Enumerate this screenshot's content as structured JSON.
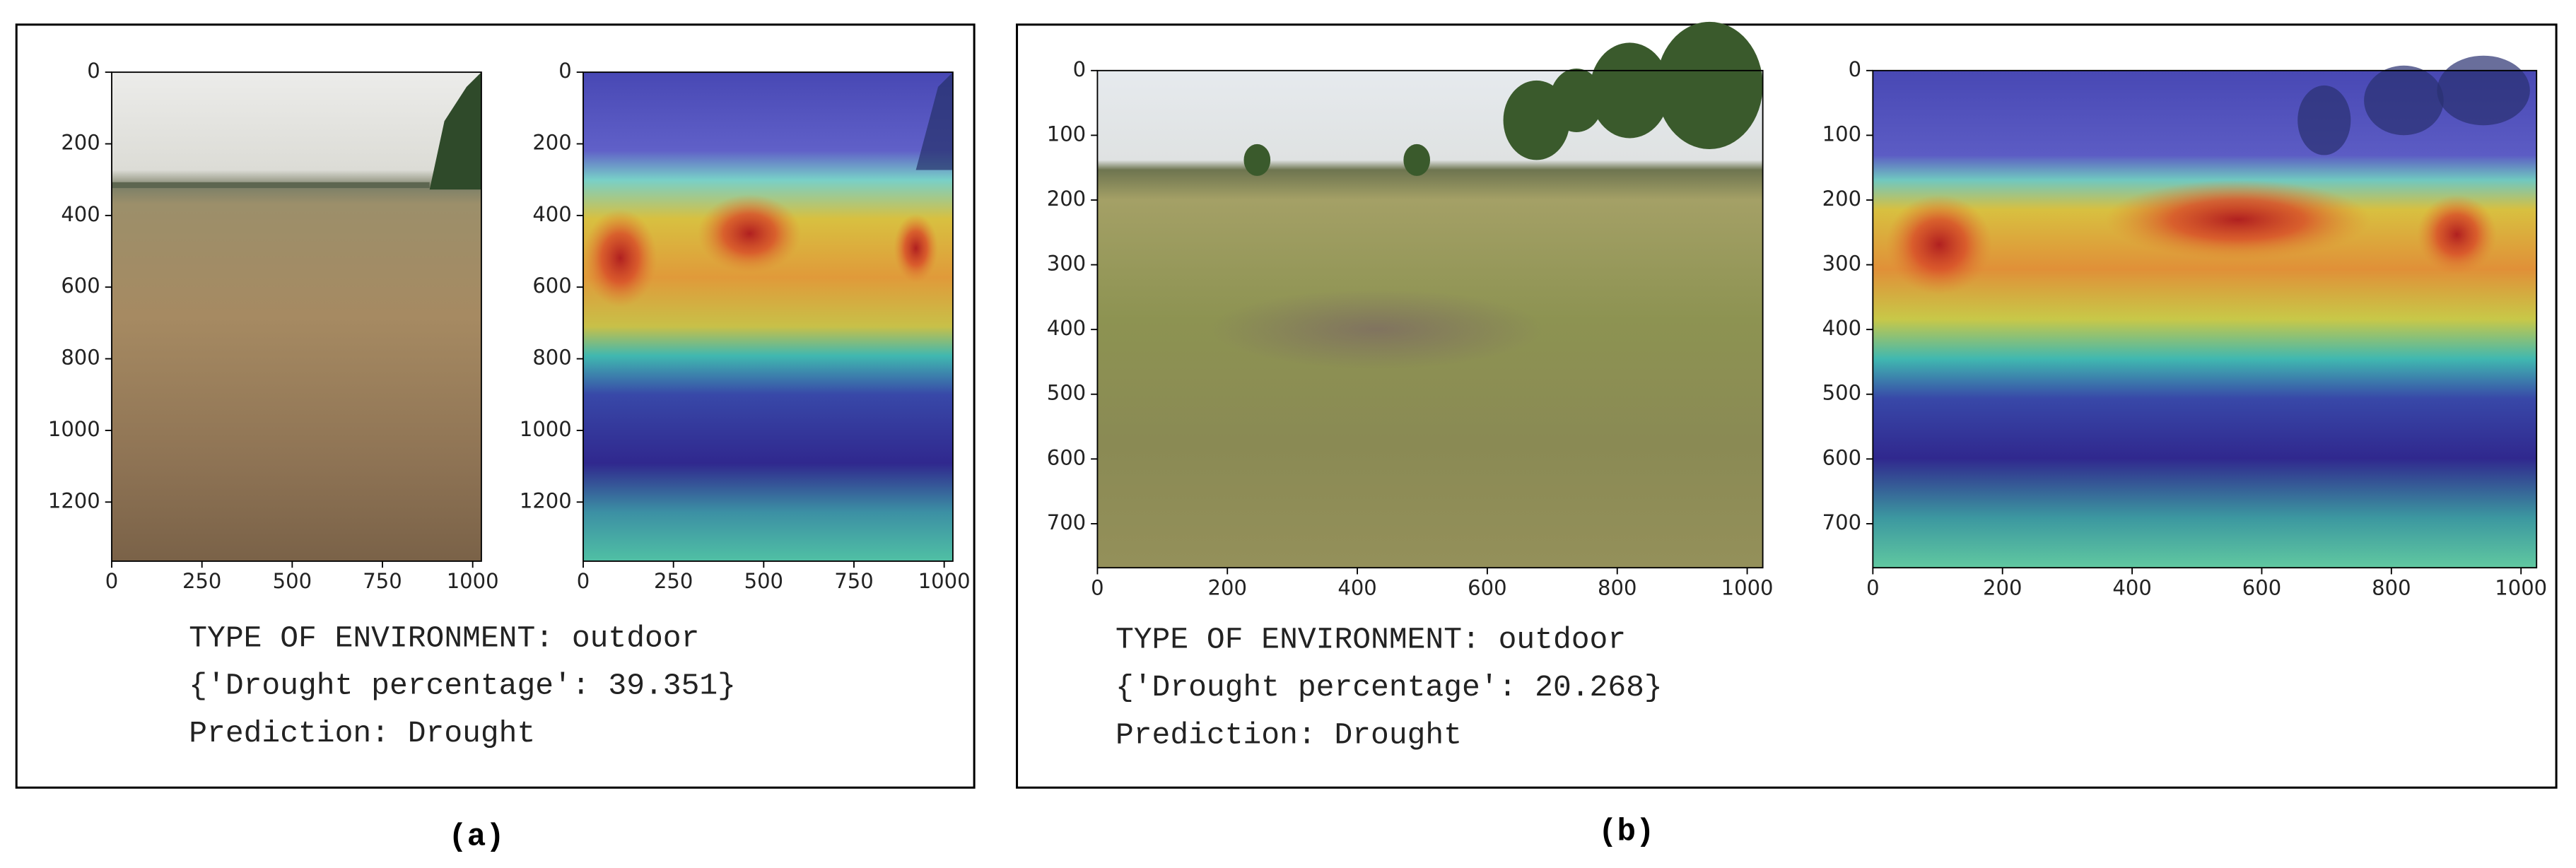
{
  "panels": [
    {
      "label": "(a)",
      "lines": [
        "TYPE OF ENVIRONMENT: outdoor",
        "{'Drought percentage': 39.351}",
        "Prediction: Drought"
      ],
      "plots": [
        {
          "xlim": [
            0,
            1024
          ],
          "ylim": [
            0,
            1365
          ],
          "xticks": [
            0,
            250,
            500,
            750,
            1000
          ],
          "yticks": [
            0,
            200,
            400,
            600,
            800,
            1000,
            1200
          ]
        },
        {
          "xlim": [
            0,
            1024
          ],
          "ylim": [
            0,
            1365
          ],
          "xticks": [
            0,
            250,
            500,
            750,
            1000
          ],
          "yticks": [
            0,
            200,
            400,
            600,
            800,
            1000,
            1200
          ]
        }
      ]
    },
    {
      "label": "(b)",
      "lines": [
        "TYPE OF ENVIRONMENT: outdoor",
        "{'Drought percentage': 20.268}",
        "Prediction: Drought"
      ],
      "plots": [
        {
          "xlim": [
            0,
            1024
          ],
          "ylim": [
            0,
            768
          ],
          "xticks": [
            0,
            200,
            400,
            600,
            800,
            1000
          ],
          "yticks": [
            0,
            100,
            200,
            300,
            400,
            500,
            600,
            700
          ]
        },
        {
          "xlim": [
            0,
            1024
          ],
          "ylim": [
            0,
            768
          ],
          "xticks": [
            0,
            200,
            400,
            600,
            800,
            1000
          ],
          "yticks": [
            0,
            100,
            200,
            300,
            400,
            500,
            600,
            700
          ]
        }
      ]
    }
  ]
}
